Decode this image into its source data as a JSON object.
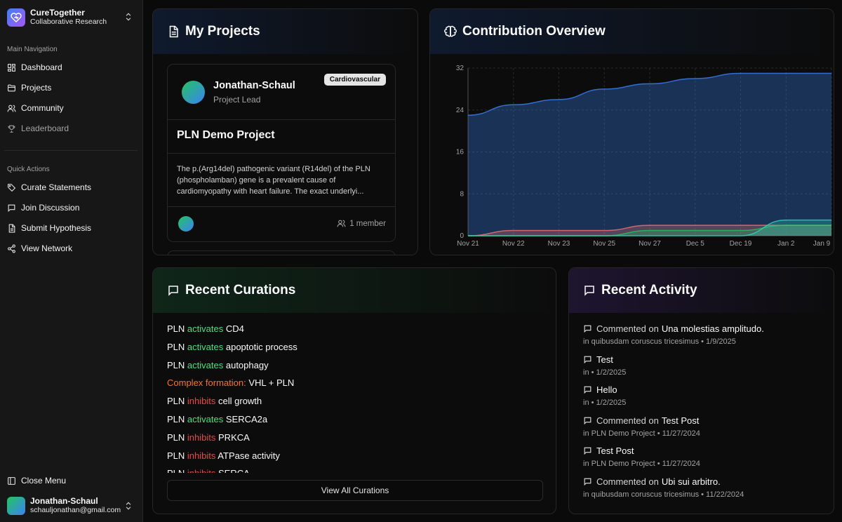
{
  "brand": {
    "name": "CureTogether",
    "subtitle": "Collaborative Research"
  },
  "sidebar": {
    "main_label": "Main Navigation",
    "nav": [
      {
        "label": "Dashboard",
        "icon": "dashboard-icon"
      },
      {
        "label": "Projects",
        "icon": "folder-icon"
      },
      {
        "label": "Community",
        "icon": "users-icon"
      },
      {
        "label": "Leaderboard",
        "icon": "trophy-icon"
      }
    ],
    "quick_label": "Quick Actions",
    "quick": [
      {
        "label": "Curate Statements",
        "icon": "tag-icon"
      },
      {
        "label": "Join Discussion",
        "icon": "message-icon"
      },
      {
        "label": "Submit Hypothesis",
        "icon": "document-icon"
      },
      {
        "label": "View Network",
        "icon": "share-icon"
      }
    ],
    "close_menu": "Close Menu",
    "user": {
      "name": "Jonathan-Schaul",
      "email": "schauljonathan@gmail.com"
    }
  },
  "projects": {
    "title": "My Projects",
    "card": {
      "owner": "Jonathan-Schaul",
      "role": "Project Lead",
      "badge": "Cardiovascular",
      "name": "PLN Demo Project",
      "description": "The p.(Arg14del) pathogenic variant (R14del) of the PLN (phospholamban) gene is a prevalent cause of cardiomyopathy with heart failure. The exact underlyi...",
      "members": "1 member"
    }
  },
  "overview": {
    "title": "Contribution Overview"
  },
  "chart_data": {
    "type": "area",
    "categories": [
      "Nov 21",
      "Nov 22",
      "Nov 23",
      "Nov 25",
      "Nov 27",
      "Dec 5",
      "Dec 19",
      "Jan 2",
      "Jan 9"
    ],
    "ylim": [
      0,
      32
    ],
    "yticks": [
      "0",
      "8",
      "16",
      "24",
      "32"
    ],
    "grid": true,
    "series": [
      {
        "values": [
          23,
          25,
          26,
          28,
          29,
          30,
          31,
          31,
          31
        ],
        "color": "#3b82f6"
      },
      {
        "values": [
          0,
          1,
          1,
          1,
          2,
          2,
          2,
          2,
          2
        ],
        "color": "#f87171"
      },
      {
        "values": [
          0,
          0,
          0,
          0,
          1,
          1,
          1,
          2,
          2
        ],
        "color": "#22c55e"
      },
      {
        "values": [
          0,
          0,
          0,
          0,
          0,
          0,
          0,
          3,
          3
        ],
        "color": "#2dd4bf"
      }
    ]
  },
  "curations": {
    "title": "Recent Curations",
    "items": [
      {
        "subject": "PLN",
        "relation": "activates",
        "object": "CD4"
      },
      {
        "subject": "PLN",
        "relation": "activates",
        "object": "apoptotic process"
      },
      {
        "subject": "PLN",
        "relation": "activates",
        "object": "autophagy"
      },
      {
        "relation": "Complex formation:",
        "object": "VHL + PLN"
      },
      {
        "subject": "PLN",
        "relation": "inhibits",
        "object": "cell growth"
      },
      {
        "subject": "PLN",
        "relation": "activates",
        "object": "SERCA2a"
      },
      {
        "subject": "PLN",
        "relation": "inhibits",
        "object": "PRKCA"
      },
      {
        "subject": "PLN",
        "relation": "inhibits",
        "object": "ATPase activity"
      },
      {
        "subject": "PLN",
        "relation": "inhibits",
        "object": "SERCA"
      }
    ],
    "view_all": "View All Curations"
  },
  "activity": {
    "title": "Recent Activity",
    "items": [
      {
        "prefix": "Commented on",
        "title": "Una molestias amplitudo.",
        "meta": "in quibusdam coruscus tricesimus • 1/9/2025"
      },
      {
        "prefix": "",
        "title": "Test",
        "meta": "in • 1/2/2025"
      },
      {
        "prefix": "",
        "title": "Hello",
        "meta": "in • 1/2/2025"
      },
      {
        "prefix": "Commented on",
        "title": "Test Post",
        "meta": "in PLN Demo Project • 11/27/2024"
      },
      {
        "prefix": "",
        "title": "Test Post",
        "meta": "in PLN Demo Project • 11/27/2024"
      },
      {
        "prefix": "Commented on",
        "title": "Ubi sui arbitro.",
        "meta": "in quibusdam coruscus tricesimus • 11/22/2024"
      }
    ]
  }
}
